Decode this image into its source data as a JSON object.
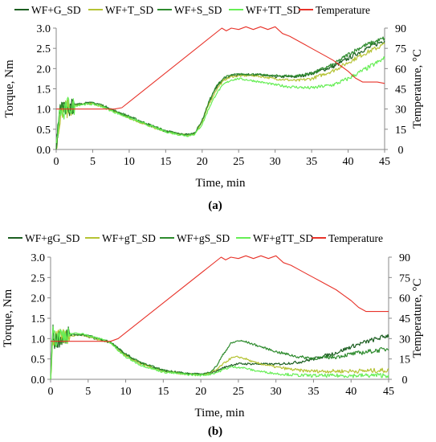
{
  "figure": {
    "panel_a_label": "(a)",
    "panel_b_label": "(b)"
  },
  "colors": {
    "G": "#1b5e20",
    "T": "#b5c334",
    "S": "#2e8b2e",
    "TT": "#66ee55",
    "Temperature": "#e8332a"
  },
  "chart_data": [
    {
      "type": "line",
      "panel": "a",
      "xlabel": "Time, min",
      "ylabel": "Torque, Nm",
      "y2label": "Temperature, °C",
      "xlim": [
        0,
        45
      ],
      "ylim": [
        0,
        3.0
      ],
      "y2lim": [
        0,
        90
      ],
      "xticks": [
        0,
        5,
        10,
        15,
        20,
        25,
        30,
        35,
        40,
        45
      ],
      "yticks": [
        0.0,
        0.5,
        1.0,
        1.5,
        2.0,
        2.5,
        3.0
      ],
      "ytick_labels": [
        "0.0",
        "0.5",
        "1.0",
        "1.5",
        "2.0",
        "2.5",
        "3.0"
      ],
      "y2ticks": [
        0,
        15,
        30,
        45,
        60,
        75,
        90
      ],
      "legend_position": "top",
      "grid": false,
      "series": [
        {
          "name": "WF+G_SD",
          "key": "G",
          "axis": "left",
          "noisy": true,
          "x": [
            0,
            0.5,
            1,
            1.5,
            2,
            3,
            4,
            5,
            6,
            8,
            10,
            12,
            15,
            17,
            18,
            19,
            20,
            21,
            22,
            23,
            24,
            25,
            27,
            30,
            33,
            35,
            38,
            40,
            42,
            45
          ],
          "y": [
            0.0,
            0.9,
            1.1,
            1.0,
            1.05,
            1.1,
            1.15,
            1.15,
            1.1,
            0.95,
            0.8,
            0.65,
            0.45,
            0.38,
            0.36,
            0.4,
            0.7,
            1.2,
            1.55,
            1.75,
            1.82,
            1.85,
            1.85,
            1.8,
            1.8,
            1.88,
            2.05,
            2.25,
            2.45,
            2.7
          ]
        },
        {
          "name": "WF+T_SD",
          "key": "T",
          "axis": "left",
          "noisy": true,
          "x": [
            0,
            0.5,
            1,
            1.5,
            2,
            3,
            4,
            5,
            6,
            8,
            10,
            12,
            15,
            17,
            18,
            19,
            20,
            21,
            22,
            23,
            24,
            25,
            27,
            30,
            33,
            35,
            38,
            40,
            42,
            45
          ],
          "y": [
            0.0,
            0.85,
            1.05,
            1.0,
            1.05,
            1.1,
            1.12,
            1.13,
            1.08,
            0.93,
            0.78,
            0.63,
            0.44,
            0.37,
            0.35,
            0.39,
            0.68,
            1.15,
            1.5,
            1.72,
            1.8,
            1.82,
            1.83,
            1.75,
            1.7,
            1.75,
            1.95,
            2.15,
            2.35,
            2.6
          ]
        },
        {
          "name": "WF+S_SD",
          "key": "S",
          "axis": "left",
          "noisy": true,
          "x": [
            0,
            0.5,
            1,
            1.5,
            2,
            3,
            4,
            5,
            6,
            8,
            10,
            12,
            15,
            17,
            18,
            19,
            20,
            21,
            22,
            23,
            24,
            25,
            27,
            30,
            33,
            35,
            38,
            40,
            42,
            45
          ],
          "y": [
            0.0,
            0.95,
            1.15,
            1.05,
            1.08,
            1.12,
            1.15,
            1.15,
            1.12,
            0.96,
            0.82,
            0.67,
            0.46,
            0.38,
            0.36,
            0.41,
            0.72,
            1.22,
            1.58,
            1.78,
            1.84,
            1.86,
            1.86,
            1.82,
            1.82,
            1.88,
            2.1,
            2.35,
            2.55,
            2.75
          ]
        },
        {
          "name": "WF+TT_SD",
          "key": "TT",
          "axis": "left",
          "noisy": true,
          "x": [
            0,
            0.5,
            1,
            1.5,
            2,
            3,
            4,
            5,
            6,
            8,
            10,
            12,
            15,
            17,
            18,
            19,
            20,
            21,
            22,
            23,
            24,
            25,
            27,
            30,
            32,
            35,
            38,
            40,
            42,
            45
          ],
          "y": [
            0.0,
            1.0,
            0.8,
            1.1,
            1.05,
            1.1,
            1.12,
            1.12,
            1.08,
            0.92,
            0.78,
            0.64,
            0.44,
            0.36,
            0.34,
            0.38,
            0.62,
            1.05,
            1.4,
            1.62,
            1.72,
            1.75,
            1.7,
            1.6,
            1.55,
            1.52,
            1.6,
            1.75,
            1.95,
            2.25
          ]
        },
        {
          "name": "Temperature",
          "key": "Temperature",
          "axis": "right",
          "noisy": false,
          "x": [
            0,
            8,
            9,
            22.7,
            23.3,
            24,
            25,
            26,
            27,
            28,
            29,
            30,
            31,
            32,
            33,
            34,
            35,
            36,
            37,
            38,
            39,
            40,
            41,
            42,
            43,
            44,
            45
          ],
          "y": [
            30,
            30,
            31,
            90,
            88,
            90,
            89,
            91,
            89,
            91,
            89,
            91,
            86,
            84,
            81,
            78,
            75,
            72,
            69,
            66,
            62,
            58,
            53,
            50,
            50,
            50,
            49
          ]
        }
      ]
    },
    {
      "type": "line",
      "panel": "b",
      "xlabel": "Time, min",
      "ylabel": "Torque, Nm",
      "y2label": "Temperature, °C",
      "xlim": [
        0,
        45
      ],
      "ylim": [
        0,
        3.0
      ],
      "y2lim": [
        0,
        90
      ],
      "xticks": [
        0,
        5,
        10,
        15,
        20,
        25,
        30,
        35,
        40,
        45
      ],
      "yticks": [
        0.0,
        0.5,
        1.0,
        1.5,
        2.0,
        2.5,
        3.0
      ],
      "ytick_labels": [
        "0.0",
        "0.5",
        "1.0",
        "1.5",
        "2.0",
        "2.5",
        "3.0"
      ],
      "y2ticks": [
        0,
        15,
        30,
        45,
        60,
        75,
        90
      ],
      "legend_position": "top",
      "grid": false,
      "series": [
        {
          "name": "WF+gG_SD",
          "key": "G",
          "axis": "left",
          "noisy": true,
          "x": [
            0,
            0.3,
            0.6,
            1,
            2,
            3,
            4,
            5,
            6,
            7,
            8,
            9,
            10,
            12,
            15,
            18,
            20,
            21,
            22,
            23,
            24,
            25,
            27,
            30,
            33,
            35,
            38,
            40,
            42,
            45
          ],
          "y": [
            0.0,
            1.1,
            0.9,
            1.0,
            1.05,
            1.1,
            1.1,
            1.05,
            1.0,
            0.95,
            0.9,
            0.75,
            0.6,
            0.4,
            0.22,
            0.14,
            0.12,
            0.14,
            0.2,
            0.28,
            0.35,
            0.38,
            0.38,
            0.37,
            0.42,
            0.5,
            0.65,
            0.8,
            0.92,
            1.08
          ]
        },
        {
          "name": "WF+gT_SD",
          "key": "T",
          "axis": "left",
          "noisy": true,
          "x": [
            0,
            0.3,
            0.6,
            1,
            2,
            3,
            4,
            5,
            6,
            7,
            8,
            9,
            10,
            12,
            15,
            18,
            20,
            21,
            22,
            23,
            24,
            25,
            26,
            27,
            30,
            33,
            35,
            38,
            40,
            45
          ],
          "y": [
            0.0,
            1.0,
            0.95,
            1.0,
            1.05,
            1.08,
            1.1,
            1.05,
            1.0,
            0.95,
            0.9,
            0.72,
            0.58,
            0.38,
            0.2,
            0.13,
            0.11,
            0.14,
            0.22,
            0.38,
            0.52,
            0.55,
            0.5,
            0.42,
            0.3,
            0.22,
            0.2,
            0.2,
            0.2,
            0.22
          ]
        },
        {
          "name": "WF+gS_SD",
          "key": "S",
          "axis": "left",
          "noisy": true,
          "x": [
            0,
            0.3,
            0.6,
            1,
            2,
            3,
            4,
            5,
            6,
            7,
            8,
            9,
            10,
            12,
            15,
            18,
            20,
            21,
            22,
            23,
            24,
            25,
            26,
            27,
            30,
            33,
            35,
            38,
            40,
            45
          ],
          "y": [
            0.0,
            1.2,
            1.0,
            1.05,
            1.08,
            1.1,
            1.1,
            1.08,
            1.02,
            0.97,
            0.92,
            0.76,
            0.62,
            0.41,
            0.22,
            0.14,
            0.12,
            0.16,
            0.3,
            0.62,
            0.88,
            0.95,
            0.92,
            0.86,
            0.68,
            0.55,
            0.52,
            0.55,
            0.62,
            0.75
          ]
        },
        {
          "name": "WF+gTT_SD",
          "key": "TT",
          "axis": "left",
          "noisy": true,
          "x": [
            0,
            0.3,
            0.6,
            1,
            2,
            3,
            4,
            5,
            6,
            7,
            8,
            9,
            10,
            12,
            15,
            18,
            20,
            21,
            22,
            23,
            24,
            25,
            26,
            27,
            30,
            33,
            35,
            38,
            40,
            45
          ],
          "y": [
            0.0,
            1.4,
            0.9,
            1.1,
            1.1,
            1.12,
            1.12,
            1.08,
            1.02,
            0.97,
            0.9,
            0.7,
            0.55,
            0.35,
            0.18,
            0.12,
            0.1,
            0.12,
            0.16,
            0.24,
            0.3,
            0.3,
            0.27,
            0.22,
            0.14,
            0.1,
            0.09,
            0.09,
            0.09,
            0.1
          ]
        },
        {
          "name": "Temperature",
          "key": "Temperature",
          "axis": "right",
          "noisy": false,
          "x": [
            0,
            8,
            9,
            22.7,
            23.3,
            24,
            25,
            26,
            27,
            28,
            29,
            30,
            31,
            32,
            33,
            34,
            35,
            36,
            37,
            38,
            39,
            40,
            41,
            42,
            43,
            44,
            45
          ],
          "y": [
            28,
            28,
            30,
            90,
            88,
            90,
            89,
            91,
            89,
            91,
            89,
            91,
            86,
            84,
            81,
            78,
            75,
            72,
            69,
            66,
            62,
            58,
            53,
            50,
            50,
            50,
            50
          ]
        }
      ]
    }
  ]
}
